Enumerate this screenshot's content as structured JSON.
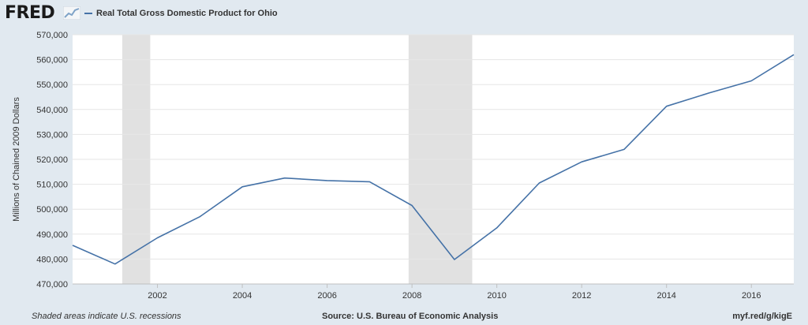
{
  "header": {
    "logo_text": "FRED",
    "legend_label": "Real Total Gross Domestic Product for Ohio"
  },
  "footer": {
    "note": "Shaded areas indicate U.S. recessions",
    "source": "Source: U.S. Bureau of Economic Analysis",
    "link": "myf.red/g/kigE"
  },
  "colors": {
    "line": "#4572a7",
    "recession": "#e1e1e1",
    "plot_bg": "#ffffff",
    "page_bg": "#e1e9f0"
  },
  "chart_data": {
    "type": "line",
    "title": "",
    "ylabel": "Millions of Chained 2009 Dollars",
    "xlabel": "",
    "xlim": [
      2000,
      2017
    ],
    "ylim": [
      470000,
      570000
    ],
    "grid": true,
    "legend": "top-left",
    "x_ticks": [
      {
        "value": 2002,
        "label": "2002"
      },
      {
        "value": 2004,
        "label": "2004"
      },
      {
        "value": 2006,
        "label": "2006"
      },
      {
        "value": 2008,
        "label": "2008"
      },
      {
        "value": 2010,
        "label": "2010"
      },
      {
        "value": 2012,
        "label": "2012"
      },
      {
        "value": 2014,
        "label": "2014"
      },
      {
        "value": 2016,
        "label": "2016"
      }
    ],
    "y_ticks": [
      {
        "value": 470000,
        "label": "470,000"
      },
      {
        "value": 480000,
        "label": "480,000"
      },
      {
        "value": 490000,
        "label": "490,000"
      },
      {
        "value": 500000,
        "label": "500,000"
      },
      {
        "value": 510000,
        "label": "510,000"
      },
      {
        "value": 520000,
        "label": "520,000"
      },
      {
        "value": 530000,
        "label": "530,000"
      },
      {
        "value": 540000,
        "label": "540,000"
      },
      {
        "value": 550000,
        "label": "550,000"
      },
      {
        "value": 560000,
        "label": "560,000"
      },
      {
        "value": 570000,
        "label": "570,000"
      }
    ],
    "recessions": [
      {
        "start": 2001.17,
        "end": 2001.83
      },
      {
        "start": 2007.92,
        "end": 2009.42
      }
    ],
    "series": [
      {
        "name": "Real Total Gross Domestic Product for Ohio",
        "x": [
          2000,
          2001,
          2002,
          2003,
          2004,
          2005,
          2006,
          2007,
          2008,
          2009,
          2010,
          2011,
          2012,
          2013,
          2014,
          2015,
          2016,
          2017
        ],
        "values": [
          485500,
          478000,
          488500,
          497000,
          509000,
          512500,
          511500,
          511000,
          501500,
          479800,
          492500,
          510500,
          519000,
          524000,
          541300,
          546600,
          551500,
          562000
        ]
      }
    ]
  }
}
